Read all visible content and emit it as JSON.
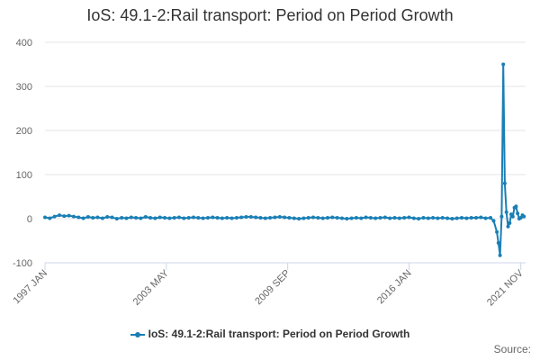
{
  "chart_data": {
    "type": "line",
    "title": "IoS: 49.1-2:Rail transport: Period on Period Growth",
    "xlabel": "",
    "ylabel": "",
    "ylim": [
      -100,
      400
    ],
    "yticks": [
      400,
      300,
      200,
      100,
      0,
      -100
    ],
    "xtick_labels": [
      "1997 JAN",
      "2003 MAY",
      "2009 SEP",
      "2016 JAN",
      "2021 NOV"
    ],
    "xtick_months": [
      0,
      76,
      152,
      228,
      298
    ],
    "xlim_months": [
      0,
      301
    ],
    "grid": true,
    "legend": "bottom-center",
    "series": [
      {
        "name": "IoS: 49.1-2:Rail transport: Period on Period Growth",
        "color": "#1a7fb5",
        "x_months": [
          0,
          3,
          6,
          9,
          12,
          15,
          18,
          21,
          24,
          27,
          30,
          33,
          36,
          39,
          42,
          45,
          48,
          51,
          54,
          57,
          60,
          63,
          66,
          69,
          72,
          75,
          78,
          81,
          84,
          87,
          90,
          93,
          96,
          99,
          102,
          105,
          108,
          111,
          114,
          117,
          120,
          123,
          126,
          129,
          132,
          135,
          138,
          141,
          144,
          147,
          150,
          153,
          156,
          159,
          162,
          165,
          168,
          171,
          174,
          177,
          180,
          183,
          186,
          189,
          192,
          195,
          198,
          201,
          204,
          207,
          210,
          213,
          216,
          219,
          222,
          225,
          228,
          231,
          234,
          237,
          240,
          243,
          246,
          249,
          252,
          255,
          258,
          261,
          264,
          267,
          270,
          273,
          276,
          279,
          281,
          283,
          284,
          285,
          286,
          287,
          288,
          289,
          290,
          291,
          292,
          293,
          294,
          295,
          296,
          297,
          298,
          299,
          300
        ],
        "values": [
          3,
          1,
          5,
          8,
          6,
          7,
          5,
          3,
          1,
          4,
          2,
          3,
          1,
          4,
          3,
          0,
          2,
          1,
          3,
          2,
          1,
          4,
          2,
          1,
          3,
          2,
          1,
          2,
          3,
          1,
          2,
          3,
          2,
          1,
          2,
          3,
          2,
          1,
          2,
          1,
          2,
          3,
          4,
          4,
          3,
          2,
          1,
          2,
          3,
          4,
          3,
          2,
          1,
          0,
          1,
          2,
          3,
          2,
          1,
          2,
          3,
          2,
          1,
          0,
          1,
          2,
          1,
          3,
          2,
          1,
          2,
          3,
          1,
          2,
          1,
          2,
          3,
          1,
          0,
          2,
          1,
          2,
          1,
          2,
          1,
          0,
          1,
          2,
          1,
          2,
          2,
          3,
          1,
          2,
          -5,
          -30,
          -55,
          -83,
          5,
          350,
          80,
          15,
          -18,
          -10,
          10,
          5,
          25,
          28,
          12,
          0,
          2,
          8,
          5
        ]
      }
    ]
  },
  "legend_label": "IoS: 49.1-2:Rail transport: Period on Period Growth",
  "source_label": "Source:",
  "colors": {
    "series": "#1a7fb5",
    "grid": "#e6e6e6",
    "axis": "#ccd6eb"
  }
}
